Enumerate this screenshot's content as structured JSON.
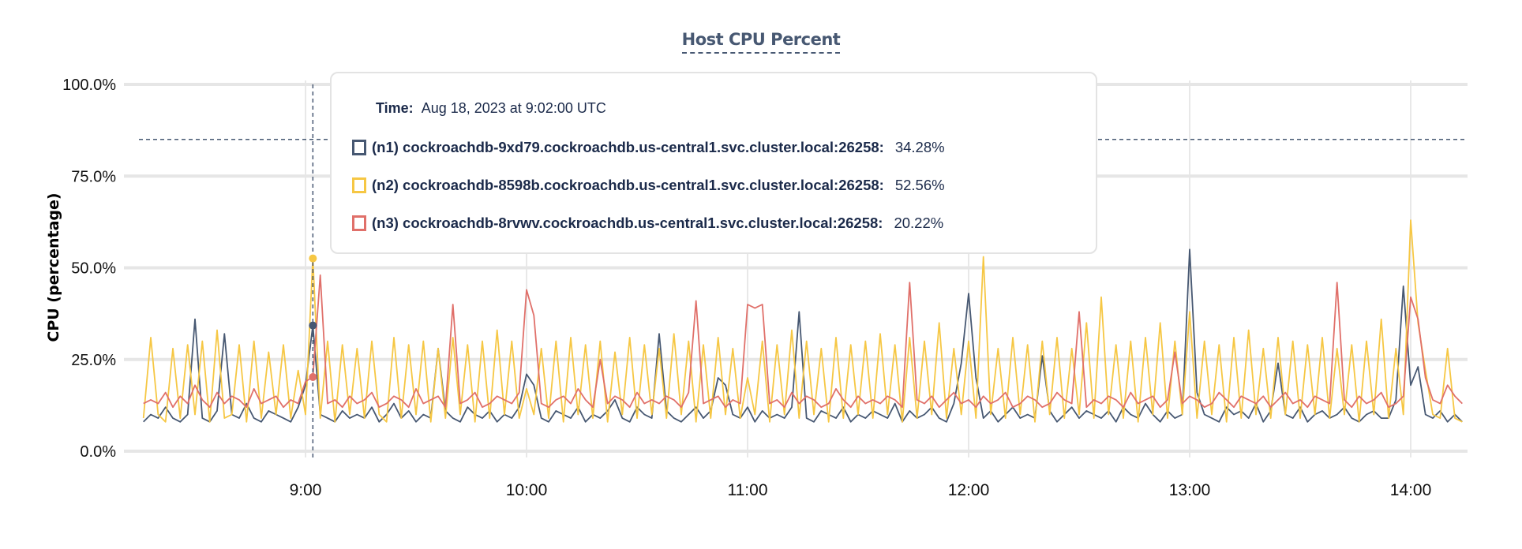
{
  "chart_data": {
    "type": "line",
    "title": "Host CPU Percent",
    "ylabel": "CPU (percentage)",
    "xlabel": "",
    "ylim": [
      0,
      100
    ],
    "y_ticks": [
      "0.0%",
      "25.0%",
      "50.0%",
      "75.0%",
      "100.0%"
    ],
    "y_tick_values": [
      0,
      25,
      50,
      75,
      100
    ],
    "x_ticks": [
      "9:00",
      "10:00",
      "11:00",
      "12:00",
      "13:00",
      "14:00"
    ],
    "x_start": "08:16",
    "x_interval_minutes": 2,
    "grid": true,
    "reference_line": 85,
    "series": [
      {
        "name": "(n1) cockroachdb-9xd79.cockroachdb.us-central1.svc.cluster.local:26258",
        "color": "#475872",
        "values": [
          8,
          10,
          9,
          12,
          9,
          8,
          10,
          36,
          9,
          8,
          11,
          32,
          10,
          9,
          13,
          9,
          8,
          11,
          10,
          9,
          8,
          12,
          18,
          34.28,
          10,
          9,
          8,
          11,
          9,
          10,
          9,
          12,
          8,
          10,
          13,
          9,
          11,
          8,
          10,
          9,
          28,
          11,
          9,
          8,
          12,
          10,
          9,
          11,
          8,
          10,
          9,
          12,
          21,
          18,
          9,
          8,
          11,
          10,
          9,
          12,
          8,
          10,
          9,
          11,
          14,
          9,
          8,
          12,
          10,
          9,
          32,
          11,
          9,
          8,
          10,
          12,
          9,
          11,
          20,
          18,
          10,
          9,
          12,
          8,
          11,
          9,
          10,
          9,
          12,
          38,
          9,
          8,
          11,
          10,
          9,
          12,
          8,
          10,
          9,
          11,
          10,
          9,
          13,
          8,
          11,
          9,
          10,
          12,
          9,
          8,
          13,
          24,
          43,
          20,
          9,
          11,
          8,
          10,
          12,
          9,
          10,
          9,
          26,
          11,
          8,
          10,
          12,
          9,
          11,
          10,
          9,
          11,
          8,
          12,
          10,
          9,
          13,
          10,
          8,
          11,
          9,
          10,
          55,
          16,
          10,
          9,
          8,
          12,
          10,
          11,
          9,
          13,
          8,
          11,
          24,
          10,
          9,
          12,
          8,
          10,
          11,
          9,
          10,
          12,
          9,
          8,
          10,
          11,
          9,
          9,
          14,
          45,
          18,
          23,
          10,
          9,
          11,
          8,
          10,
          8
        ]
      },
      {
        "name": "(n2) cockroachdb-8598b.cockroachdb.us-central1.svc.cluster.local:26258",
        "color": "#F6C744",
        "values": [
          9,
          31,
          10,
          8,
          28,
          9,
          29,
          10,
          30,
          8,
          33,
          9,
          10,
          29,
          8,
          30,
          9,
          27,
          10,
          29,
          9,
          22,
          10,
          52.56,
          9,
          30,
          8,
          29,
          10,
          28,
          9,
          30,
          10,
          8,
          31,
          9,
          29,
          10,
          30,
          8,
          28,
          9,
          31,
          10,
          29,
          8,
          30,
          9,
          33,
          10,
          30,
          9,
          17,
          10,
          28,
          9,
          30,
          8,
          31,
          10,
          29,
          9,
          30,
          8,
          27,
          10,
          31,
          9,
          29,
          10,
          28,
          9,
          32,
          10,
          30,
          8,
          29,
          9,
          31,
          10,
          28,
          9,
          20,
          10,
          30,
          8,
          29,
          10,
          33,
          9,
          30,
          10,
          28,
          8,
          31,
          9,
          29,
          10,
          30,
          9,
          32,
          10,
          29,
          8,
          31,
          9,
          30,
          10,
          35,
          9,
          28,
          10,
          30,
          9,
          53,
          10,
          28,
          9,
          31,
          10,
          29,
          8,
          30,
          10,
          31,
          9,
          28,
          10,
          35,
          9,
          42,
          10,
          29,
          9,
          30,
          8,
          31,
          10,
          35,
          9,
          30,
          10,
          38,
          9,
          30,
          10,
          29,
          8,
          31,
          9,
          33,
          10,
          28,
          9,
          31,
          10,
          30,
          9,
          29,
          10,
          31,
          9,
          28,
          10,
          29,
          8,
          30,
          10,
          36,
          9,
          28,
          10,
          63,
          35,
          22,
          10,
          9,
          28,
          9,
          8
        ]
      },
      {
        "name": "(n3) cockroachdb-8rvwv.cockroachdb.us-central1.svc.cluster.local:26258",
        "color": "#E0706A",
        "values": [
          13,
          14,
          13,
          16,
          12,
          15,
          13,
          18,
          14,
          12,
          16,
          13,
          15,
          14,
          12,
          17,
          13,
          14,
          15,
          12,
          14,
          13,
          19,
          20.22,
          48,
          13,
          14,
          12,
          15,
          13,
          14,
          16,
          12,
          13,
          15,
          14,
          12,
          17,
          13,
          14,
          15,
          12,
          40,
          13,
          14,
          16,
          12,
          13,
          15,
          14,
          13,
          16,
          44,
          37,
          13,
          12,
          14,
          15,
          13,
          17,
          14,
          12,
          25,
          13,
          15,
          14,
          12,
          16,
          13,
          14,
          13,
          15,
          14,
          12,
          16,
          41,
          13,
          14,
          15,
          12,
          14,
          13,
          40,
          39,
          40,
          13,
          14,
          12,
          16,
          13,
          15,
          14,
          12,
          13,
          17,
          14,
          12,
          15,
          13,
          14,
          13,
          15,
          14,
          12,
          46,
          14,
          13,
          15,
          12,
          14,
          16,
          13,
          14,
          12,
          15,
          13,
          14,
          16,
          12,
          13,
          15,
          14,
          12,
          13,
          16,
          14,
          13,
          38,
          12,
          14,
          13,
          15,
          14,
          12,
          16,
          13,
          14,
          15,
          12,
          14,
          27,
          13,
          15,
          14,
          12,
          13,
          16,
          14,
          12,
          15,
          14,
          13,
          15,
          12,
          14,
          16,
          13,
          14,
          12,
          15,
          14,
          13,
          46,
          14,
          12,
          15,
          13,
          14,
          16,
          12,
          13,
          15,
          42,
          36,
          20,
          14,
          13,
          18,
          15,
          13
        ]
      }
    ]
  },
  "tooltip": {
    "time_label": "Time:",
    "time_value": "Aug 18, 2023 at 9:02:00 UTC",
    "hover_time": "09:02",
    "rows": [
      {
        "name": "(n1) cockroachdb-9xd79.cockroachdb.us-central1.svc.cluster.local:26258:",
        "value": "34.28%",
        "color": "#475872"
      },
      {
        "name": "(n2) cockroachdb-8598b.cockroachdb.us-central1.svc.cluster.local:26258:",
        "value": "52.56%",
        "color": "#F6C744"
      },
      {
        "name": "(n3) cockroachdb-8rvwv.cockroachdb.us-central1.svc.cluster.local:26258:",
        "value": "20.22%",
        "color": "#E0706A"
      }
    ]
  }
}
